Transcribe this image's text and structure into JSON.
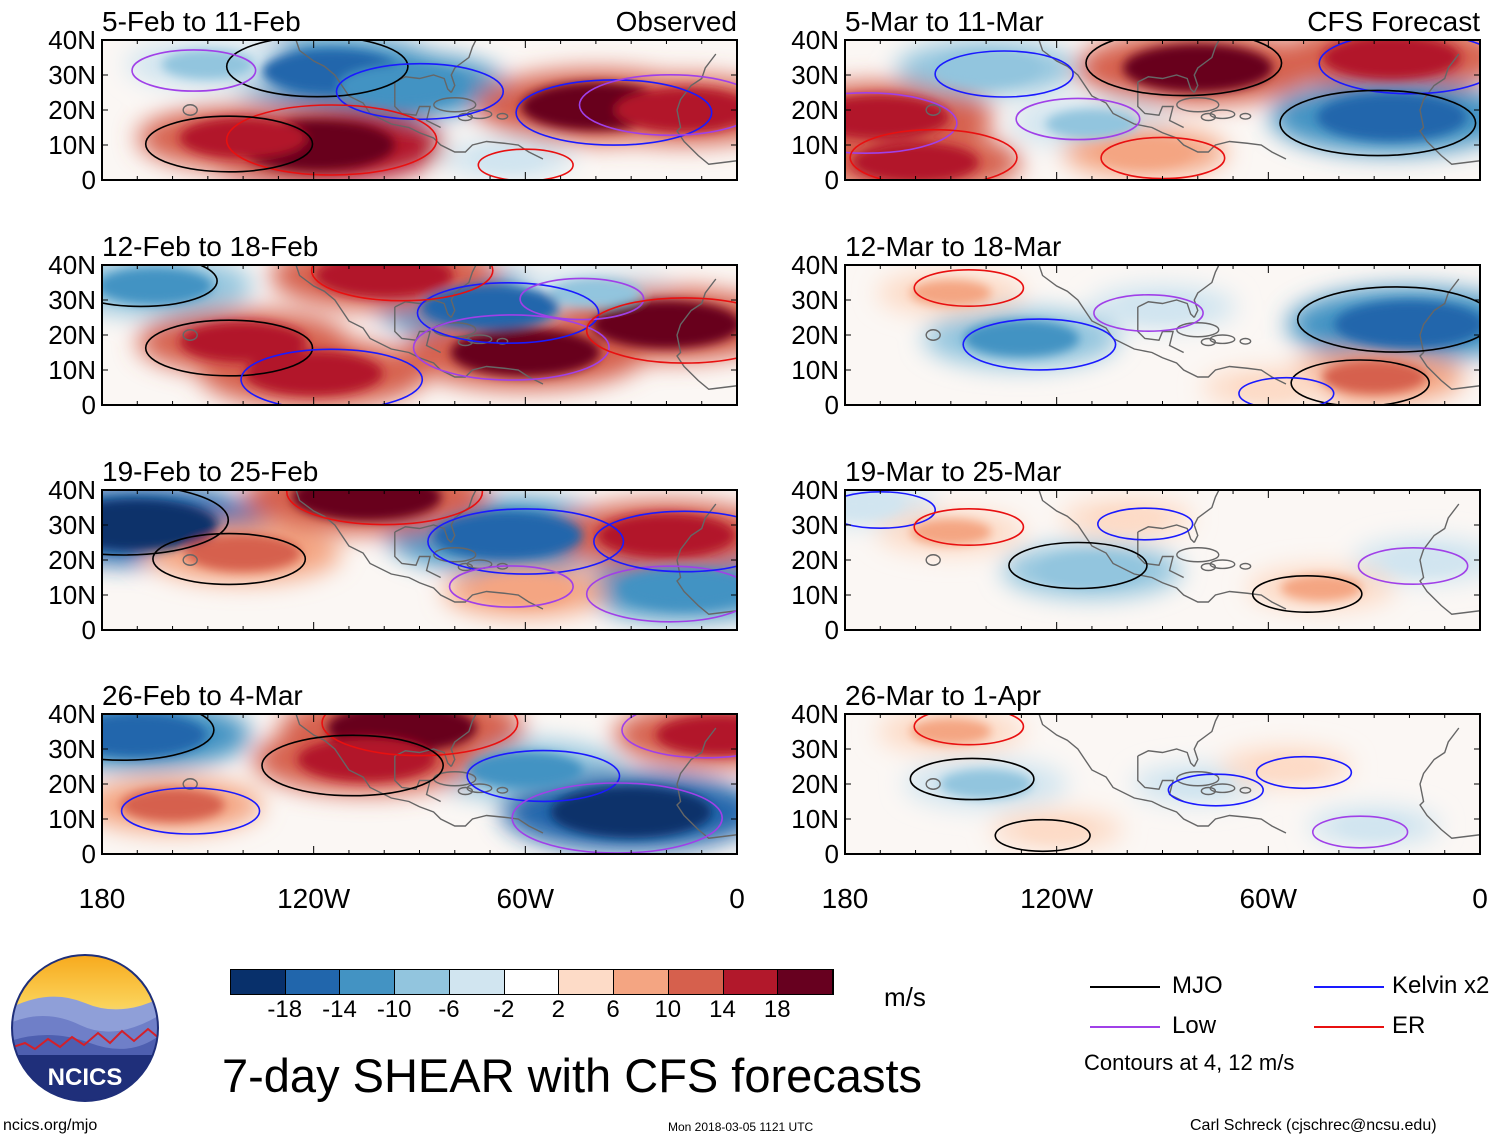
{
  "title": "7-day SHEAR with CFS forecasts",
  "footer": {
    "left": "ncics.org/mjo",
    "center": "Mon 2018-03-05 1121 UTC",
    "right": "Carl Schreck (cjschrec@ncsu.edu)"
  },
  "logo": {
    "text": "NCICS",
    "icon": "ncics-mountain-logo"
  },
  "colorbar": {
    "ticks": [
      "-18",
      "-14",
      "-10",
      "-6",
      "-2",
      "2",
      "6",
      "10",
      "14",
      "18"
    ],
    "colors": [
      "#08306b",
      "#2166ac",
      "#4393c3",
      "#92c5de",
      "#d1e5f0",
      "#ffffff",
      "#fddbc7",
      "#f4a582",
      "#d6604d",
      "#b2182b",
      "#67001f"
    ],
    "units": "m/s"
  },
  "legend": {
    "items": [
      {
        "label": "MJO",
        "color": "#000000"
      },
      {
        "label": "Kelvin x2",
        "color": "#1a1aff"
      },
      {
        "label": "Low",
        "color": "#a040e8"
      },
      {
        "label": "ER",
        "color": "#e81010"
      }
    ],
    "note": "Contours at 4, 12 m/s"
  },
  "chart_data": {
    "type": "heatmap",
    "variable": "7-day vertical wind shear anomaly (m/s)",
    "xticks": [
      "180",
      "120W",
      "60W",
      "0"
    ],
    "yticks": [
      "40N",
      "30N",
      "20N",
      "10N",
      "0"
    ],
    "xlim": [
      -180,
      0
    ],
    "ylim": [
      0,
      40
    ],
    "panels": [
      {
        "title": "5-Feb to 11-Feb",
        "source": "Observed",
        "column": "left",
        "anomalies": [
          {
            "lon": -115,
            "lat": 31,
            "value": -16
          },
          {
            "lon": -95,
            "lat": 27,
            "value": -14
          },
          {
            "lon": -150,
            "lat": 33,
            "value": -8
          },
          {
            "lon": -120,
            "lat": 10,
            "value": 20
          },
          {
            "lon": -140,
            "lat": 12,
            "value": 14
          },
          {
            "lon": -40,
            "lat": 21,
            "value": 18
          },
          {
            "lon": -15,
            "lat": 20,
            "value": 16
          },
          {
            "lon": -65,
            "lat": 6,
            "value": -4
          }
        ]
      },
      {
        "title": "12-Feb to 18-Feb",
        "source": "",
        "column": "left",
        "anomalies": [
          {
            "lon": -165,
            "lat": 34,
            "value": -12
          },
          {
            "lon": -70,
            "lat": 28,
            "value": -16
          },
          {
            "lon": -40,
            "lat": 32,
            "value": -8
          },
          {
            "lon": -100,
            "lat": 37,
            "value": 16
          },
          {
            "lon": -140,
            "lat": 18,
            "value": 14
          },
          {
            "lon": -120,
            "lat": 9,
            "value": 16
          },
          {
            "lon": -60,
            "lat": 15,
            "value": 18
          },
          {
            "lon": -20,
            "lat": 23,
            "value": 18
          }
        ]
      },
      {
        "title": "19-Feb to 25-Feb",
        "source": "",
        "column": "left",
        "anomalies": [
          {
            "lon": -170,
            "lat": 30,
            "value": -20
          },
          {
            "lon": -65,
            "lat": 27,
            "value": -18
          },
          {
            "lon": -15,
            "lat": 12,
            "value": -14
          },
          {
            "lon": -105,
            "lat": 38,
            "value": 18
          },
          {
            "lon": -140,
            "lat": 22,
            "value": 12
          },
          {
            "lon": -20,
            "lat": 27,
            "value": 16
          },
          {
            "lon": -60,
            "lat": 11,
            "value": 8
          }
        ]
      },
      {
        "title": "26-Feb to 4-Mar",
        "source": "",
        "column": "left",
        "anomalies": [
          {
            "lon": -170,
            "lat": 34,
            "value": -16
          },
          {
            "lon": -60,
            "lat": 24,
            "value": -12
          },
          {
            "lon": -30,
            "lat": 12,
            "value": -20
          },
          {
            "lon": -95,
            "lat": 36,
            "value": 18
          },
          {
            "lon": -105,
            "lat": 27,
            "value": 16
          },
          {
            "lon": -160,
            "lat": 14,
            "value": 10
          },
          {
            "lon": -5,
            "lat": 34,
            "value": 14
          }
        ]
      },
      {
        "title": "5-Mar to 11-Mar",
        "source": "CFS Forecast",
        "column": "right",
        "anomalies": [
          {
            "lon": -80,
            "lat": 32,
            "value": 18
          },
          {
            "lon": -25,
            "lat": 35,
            "value": 16
          },
          {
            "lon": -170,
            "lat": 18,
            "value": 16
          },
          {
            "lon": -160,
            "lat": 5,
            "value": 14
          },
          {
            "lon": -25,
            "lat": 18,
            "value": -18
          },
          {
            "lon": -140,
            "lat": 32,
            "value": -10
          },
          {
            "lon": -110,
            "lat": 16,
            "value": -8
          },
          {
            "lon": -95,
            "lat": 8,
            "value": 8
          }
        ]
      },
      {
        "title": "12-Mar to 18-Mar",
        "source": "",
        "column": "right",
        "anomalies": [
          {
            "lon": -20,
            "lat": 23,
            "value": -18
          },
          {
            "lon": -130,
            "lat": 19,
            "value": -12
          },
          {
            "lon": -90,
            "lat": 28,
            "value": -6
          },
          {
            "lon": -150,
            "lat": 32,
            "value": 6
          },
          {
            "lon": -30,
            "lat": 8,
            "value": 10
          },
          {
            "lon": -60,
            "lat": 5,
            "value": 4
          }
        ]
      },
      {
        "title": "19-Mar to 25-Mar",
        "source": "",
        "column": "right",
        "anomalies": [
          {
            "lon": -110,
            "lat": 17,
            "value": -10
          },
          {
            "lon": -175,
            "lat": 36,
            "value": -6
          },
          {
            "lon": -15,
            "lat": 20,
            "value": -6
          },
          {
            "lon": -150,
            "lat": 28,
            "value": 6
          },
          {
            "lon": -45,
            "lat": 12,
            "value": 6
          },
          {
            "lon": -100,
            "lat": 32,
            "value": 4
          }
        ]
      },
      {
        "title": "26-Mar to 1-Apr",
        "source": "",
        "column": "right",
        "anomalies": [
          {
            "lon": -140,
            "lat": 20,
            "value": -8
          },
          {
            "lon": -80,
            "lat": 20,
            "value": -4
          },
          {
            "lon": -30,
            "lat": 8,
            "value": -4
          },
          {
            "lon": -150,
            "lat": 35,
            "value": 6
          },
          {
            "lon": -120,
            "lat": 7,
            "value": 4
          },
          {
            "lon": -55,
            "lat": 25,
            "value": 4
          }
        ]
      }
    ]
  }
}
